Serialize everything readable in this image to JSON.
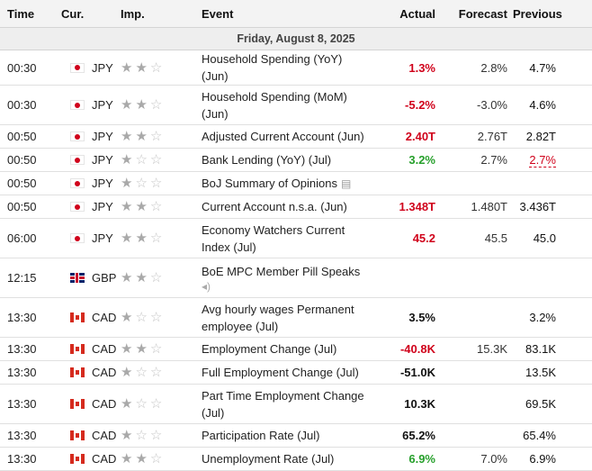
{
  "header": {
    "time": "Time",
    "currency": "Cur.",
    "importance": "Imp.",
    "event": "Event",
    "actual": "Actual",
    "forecast": "Forecast",
    "previous": "Previous"
  },
  "date_label": "Friday, August 8, 2025",
  "star_glyph": "★",
  "colors": {
    "negative": "#d0021b",
    "positive": "#27a02c",
    "neutral": "#111111"
  },
  "rows": [
    {
      "time": "00:30",
      "currency": "JPY",
      "flag": "jpy",
      "importance": 2,
      "event": "Household Spending (YoY) (Jun)",
      "actual": "1.3%",
      "actual_status": "neg",
      "forecast": "2.8%",
      "previous": "4.7%",
      "previous_revised": false
    },
    {
      "time": "00:30",
      "currency": "JPY",
      "flag": "jpy",
      "importance": 2,
      "event": "Household Spending (MoM) (Jun)",
      "actual": "-5.2%",
      "actual_status": "neg",
      "forecast": "-3.0%",
      "previous": "4.6%",
      "previous_revised": false
    },
    {
      "time": "00:50",
      "currency": "JPY",
      "flag": "jpy",
      "importance": 2,
      "event": "Adjusted Current Account (Jun)",
      "actual": "2.40T",
      "actual_status": "neg",
      "forecast": "2.76T",
      "previous": "2.82T",
      "previous_revised": false
    },
    {
      "time": "00:50",
      "currency": "JPY",
      "flag": "jpy",
      "importance": 1,
      "event": "Bank Lending (YoY) (Jul)",
      "actual": "3.2%",
      "actual_status": "pos",
      "forecast": "2.7%",
      "previous": "2.7%",
      "previous_revised": true
    },
    {
      "time": "00:50",
      "currency": "JPY",
      "flag": "jpy",
      "importance": 1,
      "event": "BoJ Summary of Opinions",
      "icon": "document-icon",
      "actual": "",
      "actual_status": "neu",
      "forecast": "",
      "previous": "",
      "previous_revised": false
    },
    {
      "time": "00:50",
      "currency": "JPY",
      "flag": "jpy",
      "importance": 2,
      "event": "Current Account n.s.a. (Jun)",
      "actual": "1.348T",
      "actual_status": "neg",
      "forecast": "1.480T",
      "previous": "3.436T",
      "previous_revised": false
    },
    {
      "time": "06:00",
      "currency": "JPY",
      "flag": "jpy",
      "importance": 2,
      "event": "Economy Watchers Current Index (Jul)",
      "actual": "45.2",
      "actual_status": "neg",
      "forecast": "45.5",
      "previous": "45.0",
      "previous_revised": false
    },
    {
      "time": "12:15",
      "currency": "GBP",
      "flag": "gbp",
      "importance": 2,
      "event": "BoE MPC Member Pill Speaks",
      "icon": "speaker-icon",
      "actual": "",
      "actual_status": "neu",
      "forecast": "",
      "previous": "",
      "previous_revised": false
    },
    {
      "time": "13:30",
      "currency": "CAD",
      "flag": "cad",
      "importance": 1,
      "event": "Avg hourly wages Permanent employee (Jul)",
      "actual": "3.5%",
      "actual_status": "neu",
      "forecast": "",
      "previous": "3.2%",
      "previous_revised": false
    },
    {
      "time": "13:30",
      "currency": "CAD",
      "flag": "cad",
      "importance": 2,
      "event": "Employment Change (Jul)",
      "actual": "-40.8K",
      "actual_status": "neg",
      "forecast": "15.3K",
      "previous": "83.1K",
      "previous_revised": false
    },
    {
      "time": "13:30",
      "currency": "CAD",
      "flag": "cad",
      "importance": 1,
      "event": "Full Employment Change (Jul)",
      "actual": "-51.0K",
      "actual_status": "neu",
      "forecast": "",
      "previous": "13.5K",
      "previous_revised": false
    },
    {
      "time": "13:30",
      "currency": "CAD",
      "flag": "cad",
      "importance": 1,
      "event": "Part Time Employment Change (Jul)",
      "actual": "10.3K",
      "actual_status": "neu",
      "forecast": "",
      "previous": "69.5K",
      "previous_revised": false
    },
    {
      "time": "13:30",
      "currency": "CAD",
      "flag": "cad",
      "importance": 1,
      "event": "Participation Rate (Jul)",
      "actual": "65.2%",
      "actual_status": "neu",
      "forecast": "",
      "previous": "65.4%",
      "previous_revised": false
    },
    {
      "time": "13:30",
      "currency": "CAD",
      "flag": "cad",
      "importance": 2,
      "event": "Unemployment Rate (Jul)",
      "actual": "6.9%",
      "actual_status": "pos",
      "forecast": "7.0%",
      "previous": "6.9%",
      "previous_revised": false
    }
  ]
}
